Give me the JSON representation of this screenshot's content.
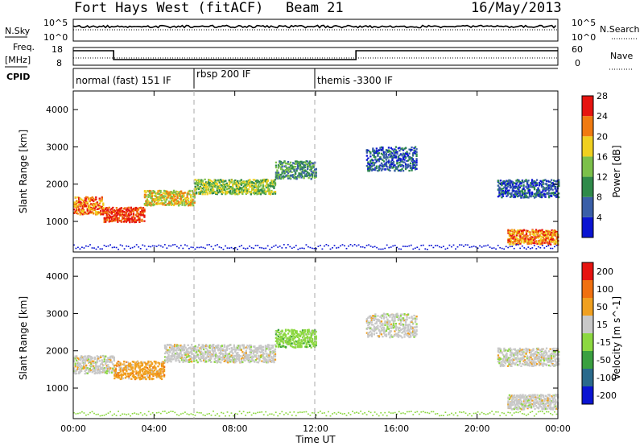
{
  "header": {
    "radar": "Fort Hays West (fitACF)",
    "beam": "Beam 21",
    "date": "16/May/2013"
  },
  "strip_labels": {
    "nsky": "N.Sky",
    "nsky_top": "10^5",
    "nsky_bottom": "10^0",
    "nsearch": "N.Search",
    "nsearch_top": "10^5",
    "nsearch_bottom": "10^0",
    "freq": "Freq.",
    "freq_unit": "[MHz]",
    "freq_top": "18",
    "freq_bottom": "8",
    "nave": "Nave",
    "nave_top": "60",
    "nave_bottom": "0",
    "cpid": "CPID"
  },
  "modes": [
    {
      "label": "normal (fast) 151 IF",
      "start_hour": 0
    },
    {
      "label": "rbsp 200 IF",
      "start_hour": 6
    },
    {
      "label": "themis -3300 IF",
      "start_hour": 12
    }
  ],
  "chart_data": [
    {
      "type": "heatmap",
      "name": "power",
      "ylabel": "Slant Range [km]",
      "xlabel": "Time UT",
      "x_ticks": [
        "00:00",
        "04:00",
        "08:00",
        "12:00",
        "16:00",
        "20:00",
        "00:00"
      ],
      "y_ticks": [
        1000,
        2000,
        3000,
        4000
      ],
      "colorbar": {
        "label": "Power [dB]",
        "ticks": [
          "4",
          "8",
          "12",
          "16",
          "20",
          "24",
          "28"
        ],
        "colors": [
          "#0a14d2",
          "#3a5fa8",
          "#2f8a4a",
          "#7cc04a",
          "#f0d020",
          "#f07a10",
          "#e61410"
        ]
      },
      "echo_bands": [
        {
          "t_start": 0.0,
          "t_end": 1.5,
          "range_center": 1450,
          "width": 300,
          "level": 5
        },
        {
          "t_start": 1.5,
          "t_end": 3.5,
          "range_center": 1200,
          "width": 250,
          "level": 6
        },
        {
          "t_start": 3.5,
          "t_end": 6.0,
          "range_center": 1650,
          "width": 250,
          "level": 4
        },
        {
          "t_start": 6.0,
          "t_end": 10.0,
          "range_center": 1950,
          "width": 250,
          "level": 3
        },
        {
          "t_start": 10.0,
          "t_end": 12.0,
          "range_center": 2400,
          "width": 300,
          "level": 2
        },
        {
          "t_start": 14.5,
          "t_end": 17.0,
          "range_center": 2700,
          "width": 400,
          "level": 1
        },
        {
          "t_start": 21.0,
          "t_end": 24.0,
          "range_center": 1900,
          "width": 300,
          "level": 1
        },
        {
          "t_start": 21.5,
          "t_end": 24.0,
          "range_center": 600,
          "width": 250,
          "level": 5
        }
      ]
    },
    {
      "type": "heatmap",
      "name": "velocity",
      "ylabel": "Slant Range [km]",
      "xlabel": "Time UT",
      "x_ticks": [
        "00:00",
        "04:00",
        "08:00",
        "12:00",
        "16:00",
        "20:00",
        "00:00"
      ],
      "y_ticks": [
        1000,
        2000,
        3000,
        4000
      ],
      "colorbar": {
        "label": "Velocity [m s^-1]",
        "ticks": [
          "200",
          "100",
          "50",
          "15",
          "-15",
          "-50",
          "-100",
          "-200"
        ],
        "colors": [
          "#0a14d2",
          "#2a6a8c",
          "#3aa040",
          "#8cd840",
          "#c8c8c8",
          "#f0a020",
          "#f07010",
          "#e61410"
        ]
      },
      "echo_bands": [
        {
          "t_start": 0.0,
          "t_end": 2.0,
          "range_center": 1650,
          "width": 300,
          "color_index": 4
        },
        {
          "t_start": 2.0,
          "t_end": 4.5,
          "range_center": 1500,
          "width": 300,
          "color_index": 5
        },
        {
          "t_start": 4.5,
          "t_end": 10.0,
          "range_center": 1950,
          "width": 300,
          "color_index": 4
        },
        {
          "t_start": 10.0,
          "t_end": 12.0,
          "range_center": 2350,
          "width": 300,
          "color_index": 3
        },
        {
          "t_start": 14.5,
          "t_end": 17.0,
          "range_center": 2700,
          "width": 400,
          "color_index": 4
        },
        {
          "t_start": 21.0,
          "t_end": 24.0,
          "range_center": 1850,
          "width": 300,
          "color_index": 4
        },
        {
          "t_start": 21.5,
          "t_end": 24.0,
          "range_center": 650,
          "width": 250,
          "color_index": 4
        }
      ]
    }
  ]
}
